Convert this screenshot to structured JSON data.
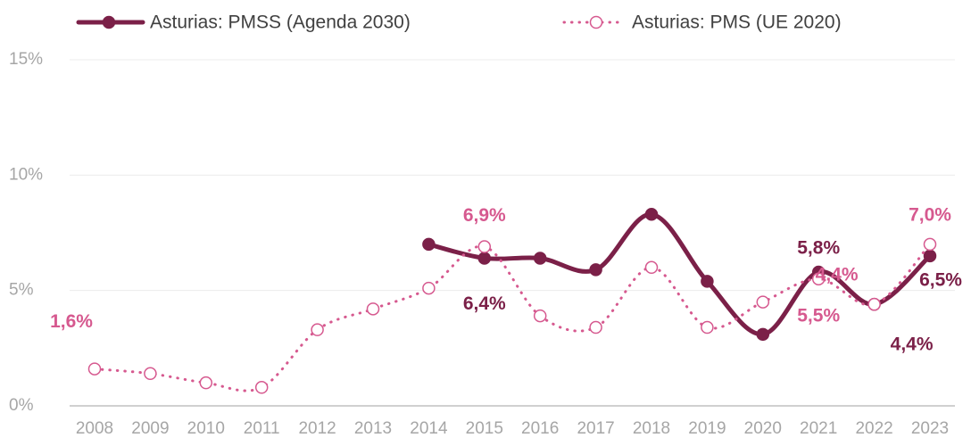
{
  "chart_data": {
    "type": "line",
    "categories": [
      "2008",
      "2009",
      "2010",
      "2011",
      "2012",
      "2013",
      "2014",
      "2015",
      "2016",
      "2017",
      "2018",
      "2019",
      "2020",
      "2021",
      "2022",
      "2023"
    ],
    "series": [
      {
        "name": "Asturias: PMSS (Agenda 2030)",
        "color": "#7b2048",
        "style": "solid",
        "values": [
          null,
          null,
          null,
          null,
          null,
          null,
          7.0,
          6.4,
          6.4,
          5.9,
          8.3,
          5.4,
          3.1,
          5.8,
          4.4,
          6.5
        ],
        "value_labels": [
          null,
          null,
          null,
          null,
          null,
          null,
          null,
          "6,4%",
          null,
          null,
          null,
          null,
          null,
          "5,8%",
          "4,4%",
          "6,5%"
        ]
      },
      {
        "name": "Asturias: PMS (UE 2020)",
        "color": "#d6598f",
        "style": "dotted",
        "values": [
          1.6,
          1.4,
          1.0,
          0.8,
          3.3,
          4.2,
          5.1,
          6.9,
          3.9,
          3.4,
          6.0,
          3.4,
          4.5,
          5.5,
          4.4,
          7.0
        ],
        "value_labels": [
          "1,6%",
          null,
          null,
          null,
          null,
          null,
          null,
          "6,9%",
          null,
          null,
          null,
          null,
          null,
          "5,5%",
          "4,4%",
          "7,0%"
        ]
      }
    ],
    "ylim": [
      0,
      15
    ],
    "yticks": [
      {
        "value": 0,
        "label": "0%"
      },
      {
        "value": 5,
        "label": "5%"
      },
      {
        "value": 10,
        "label": "10%"
      },
      {
        "value": 15,
        "label": "15%"
      }
    ],
    "grid": true,
    "legend": "top"
  }
}
